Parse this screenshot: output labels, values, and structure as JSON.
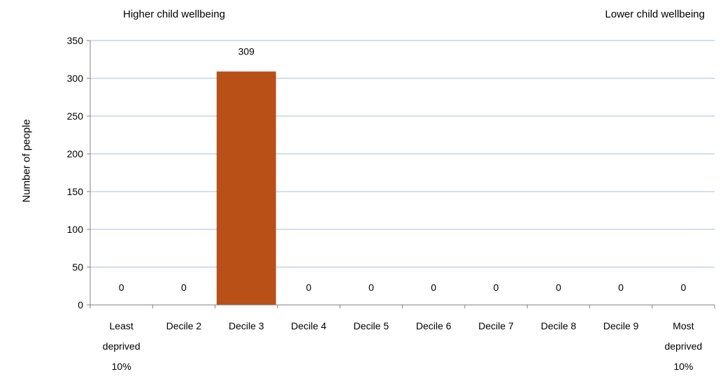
{
  "annotations": {
    "left": "Higher child wellbeing",
    "right": "Lower child wellbeing"
  },
  "chart_data": {
    "type": "bar",
    "title": "",
    "xlabel": "",
    "ylabel": "Number of people",
    "ylim": [
      0,
      350
    ],
    "yticks": [
      0,
      50,
      100,
      150,
      200,
      250,
      300,
      350
    ],
    "grid": true,
    "categories": [
      [
        "Least",
        "deprived",
        "10%"
      ],
      [
        "Decile 2"
      ],
      [
        "Decile 3"
      ],
      [
        "Decile 4"
      ],
      [
        "Decile 5"
      ],
      [
        "Decile 6"
      ],
      [
        "Decile 7"
      ],
      [
        "Decile 8"
      ],
      [
        "Decile 9"
      ],
      [
        "Most",
        "deprived",
        "10%"
      ]
    ],
    "values": [
      0,
      0,
      309,
      0,
      0,
      0,
      0,
      0,
      0,
      0
    ],
    "data_labels": [
      "0",
      "0",
      "309",
      "0",
      "0",
      "0",
      "0",
      "0",
      "0",
      "0"
    ],
    "bar_color": "#b85017"
  }
}
